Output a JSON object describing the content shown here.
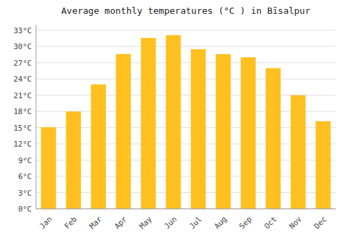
{
  "chart_data": {
    "type": "bar",
    "title": "Average monthly temperatures (°C ) in Bīsalpur",
    "categories": [
      "Jan",
      "Feb",
      "Mar",
      "Apr",
      "May",
      "Jun",
      "Jul",
      "Aug",
      "Sep",
      "Oct",
      "Nov",
      "Dec"
    ],
    "values": [
      15.1,
      18.0,
      23.0,
      28.6,
      31.6,
      32.1,
      29.5,
      28.6,
      28.0,
      26.0,
      21.0,
      16.2
    ],
    "color": "#FFC020",
    "ylim": [
      0,
      34
    ],
    "yticks": [
      {
        "value": 0,
        "label": "0°C"
      },
      {
        "value": 3,
        "label": "3°C"
      },
      {
        "value": 6,
        "label": "6°C"
      },
      {
        "value": 9,
        "label": "9°C"
      },
      {
        "value": 12,
        "label": "12°C"
      },
      {
        "value": 15,
        "label": "15°C"
      },
      {
        "value": 18,
        "label": "18°C"
      },
      {
        "value": 21,
        "label": "21°C"
      },
      {
        "value": 24,
        "label": "24°C"
      },
      {
        "value": 27,
        "label": "27°C"
      },
      {
        "value": 30,
        "label": "30°C"
      },
      {
        "value": 33,
        "label": "33°C"
      }
    ],
    "grid": true
  }
}
